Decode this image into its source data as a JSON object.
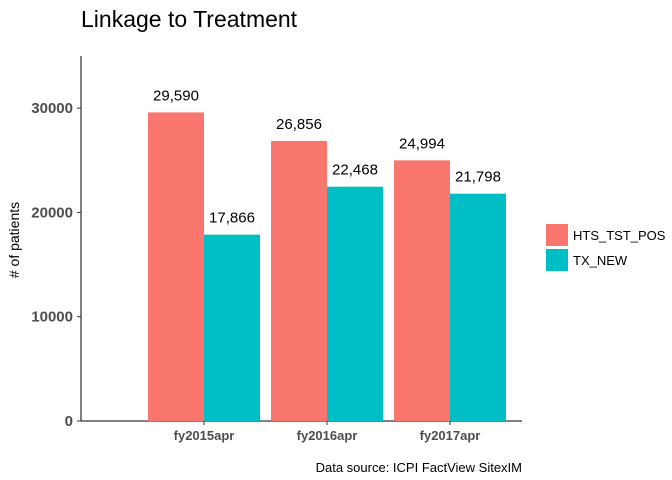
{
  "chart_data": {
    "type": "bar",
    "title": "Linkage to Treatment",
    "xlabel": "",
    "ylabel": "# of patients",
    "categories": [
      "fy2015apr",
      "fy2016apr",
      "fy2017apr"
    ],
    "series": [
      {
        "name": "HTS_TST_POS",
        "color": "#F8766D",
        "values": [
          29590,
          26856,
          24994
        ],
        "labels": [
          "29,590",
          "26,856",
          "24,994"
        ]
      },
      {
        "name": "TX_NEW",
        "color": "#00BFC4",
        "values": [
          17866,
          22468,
          21798
        ],
        "labels": [
          "17,866",
          "22,468",
          "21,798"
        ]
      }
    ],
    "ylim": [
      0,
      35000
    ],
    "yticks": [
      0,
      10000,
      20000,
      30000
    ],
    "ytick_labels": [
      "0",
      "10000",
      "20000",
      "30000"
    ],
    "grid": false,
    "legend_position": "right",
    "caption": "Data source: ICPI FactView SitexIM"
  }
}
